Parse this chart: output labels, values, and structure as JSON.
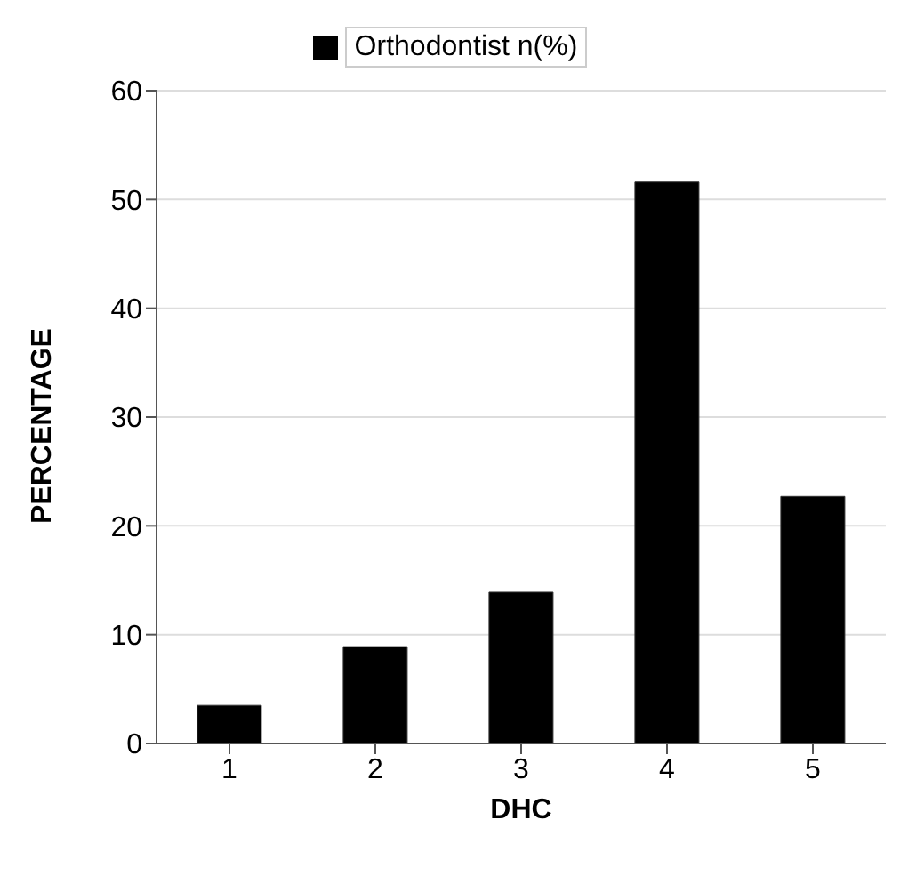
{
  "chart_data": {
    "type": "bar",
    "xlabel": "DHC",
    "ylabel": "PERCENTAGE",
    "categories": [
      "1",
      "2",
      "3",
      "4",
      "5"
    ],
    "series": [
      {
        "name": "Orthodontist n(%)",
        "color": "#000000",
        "values": [
          3.5,
          8.9,
          13.9,
          51.6,
          22.7
        ]
      }
    ],
    "ylim": [
      0,
      60
    ],
    "yticks": [
      0,
      10,
      20,
      30,
      40,
      50,
      60
    ],
    "grid": "y",
    "legend": "top"
  }
}
